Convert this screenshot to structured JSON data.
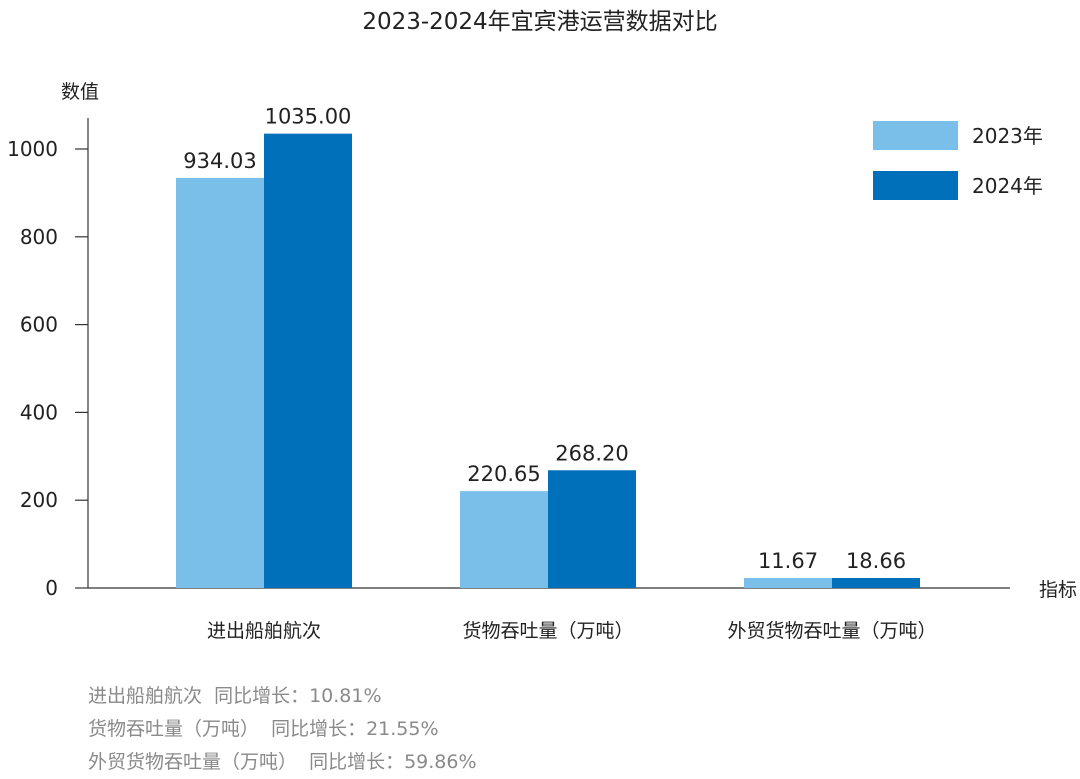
{
  "chart_data": {
    "type": "bar",
    "title": "2023-2024年宜宾港运营数据对比",
    "xlabel": "指标",
    "ylabel": "数值",
    "ylim": [
      0,
      1070
    ],
    "yticks": [
      0,
      200,
      400,
      600,
      800,
      1000
    ],
    "grid": false,
    "legend_position": "top-right",
    "categories": [
      "进出船舶航次",
      "货物吞吐量（万吨）",
      "外贸货物吞吐量（万吨）"
    ],
    "series": [
      {
        "name": "2023年",
        "color": "#7abfe9",
        "values": [
          934.03,
          220.65,
          11.67
        ],
        "labels": [
          "934.03",
          "220.65",
          "11.67"
        ]
      },
      {
        "name": "2024年",
        "color": "#0070ba",
        "values": [
          1035.0,
          268.2,
          18.66
        ],
        "labels": [
          "1035.00",
          "268.20",
          "18.66"
        ]
      }
    ]
  },
  "notes": [
    "进出船舶航次  同比增长：10.81%",
    "货物吞吐量（万吨）  同比增长：21.55%",
    "外贸货物吞吐量（万吨）  同比增长：59.86%"
  ]
}
